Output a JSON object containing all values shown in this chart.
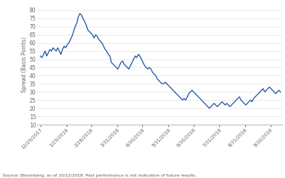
{
  "ylabel": "Spread (Basis Points)",
  "source_text": "Source: Bloomberg, as of 10/12/2018. Past performance is not indicative of future results.",
  "line_color": "#2255aa",
  "line_width": 1.0,
  "yticks": [
    10,
    15,
    20,
    25,
    30,
    35,
    40,
    45,
    50,
    55,
    60,
    65,
    70,
    75,
    80
  ],
  "ylim": [
    10,
    83
  ],
  "xtick_labels": [
    "12/29/2017",
    "1/29/2018",
    "2/28/2018",
    "3/31/2018",
    "4/30/2018",
    "5/31/2018",
    "6/30/2018",
    "7/31/2018",
    "8/31/2018",
    "9/30/2018"
  ],
  "background_color": "#ffffff",
  "values": [
    52,
    51,
    53,
    55,
    52,
    54,
    56,
    55,
    57,
    56,
    55,
    57,
    55,
    53,
    56,
    58,
    57,
    59,
    60,
    62,
    64,
    67,
    70,
    72,
    76,
    78,
    77,
    75,
    73,
    71,
    68,
    67,
    66,
    65,
    63,
    65,
    64,
    62,
    61,
    60,
    58,
    56,
    55,
    53,
    52,
    48,
    47,
    46,
    45,
    44,
    46,
    48,
    49,
    47,
    46,
    45,
    44,
    46,
    48,
    50,
    52,
    51,
    53,
    52,
    50,
    48,
    46,
    45,
    44,
    45,
    44,
    42,
    41,
    40,
    38,
    37,
    36,
    35,
    35,
    36,
    35,
    34,
    33,
    32,
    31,
    30,
    29,
    28,
    27,
    26,
    25,
    26,
    25,
    27,
    29,
    30,
    31,
    30,
    29,
    28,
    27,
    26,
    25,
    24,
    23,
    22,
    21,
    20,
    21,
    22,
    23,
    22,
    21,
    22,
    23,
    24,
    23,
    22,
    23,
    22,
    21,
    22,
    23,
    24,
    25,
    26,
    27,
    25,
    24,
    23,
    22,
    23,
    24,
    25,
    24,
    26,
    27,
    28,
    29,
    30,
    31,
    32,
    30,
    31,
    32,
    33,
    32,
    31,
    30,
    29,
    30,
    31,
    30
  ]
}
